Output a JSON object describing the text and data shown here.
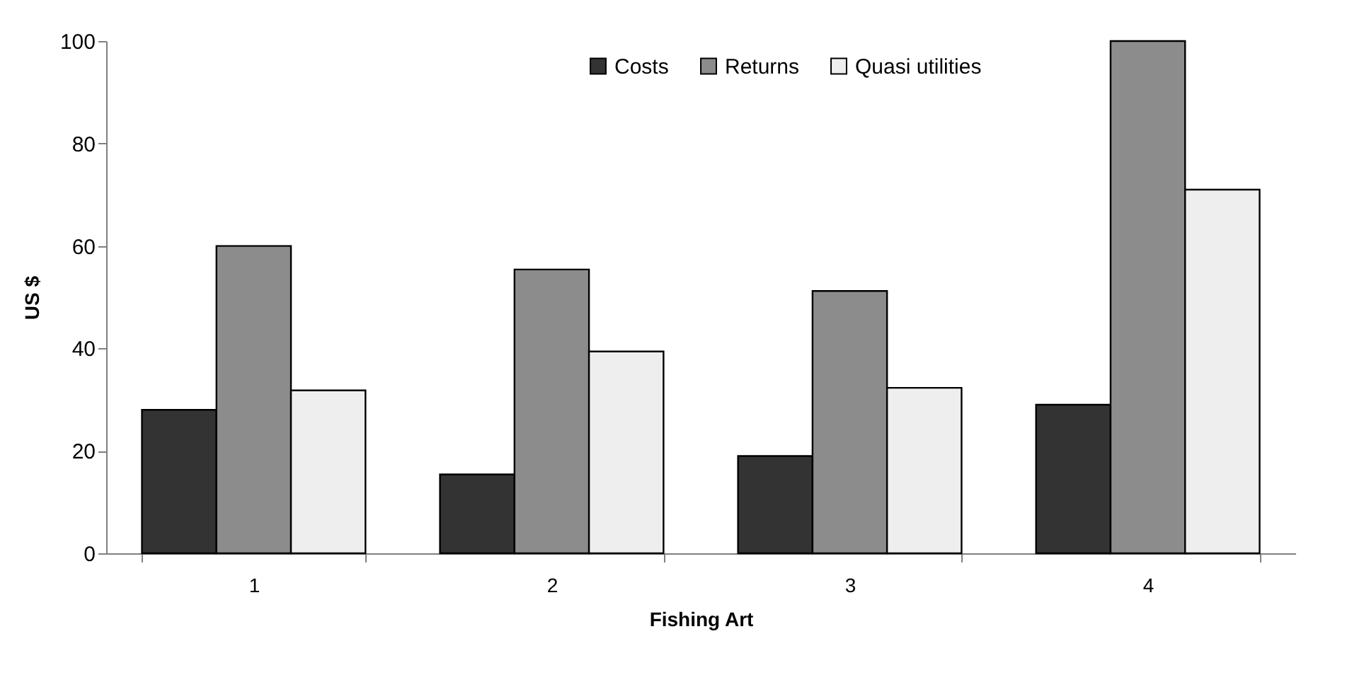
{
  "chart_data": {
    "type": "bar",
    "xlabel": "Fishing Art",
    "ylabel": "US $",
    "categories": [
      "1",
      "2",
      "3",
      "4"
    ],
    "series": [
      {
        "name": "Costs",
        "color": "#333333",
        "values": [
          28,
          15.4,
          19,
          29
        ]
      },
      {
        "name": "Returns",
        "color": "#8c8c8c",
        "values": [
          60,
          55.4,
          51.2,
          100
        ]
      },
      {
        "name": "Quasi utilities",
        "color": "#eeeeee",
        "values": [
          31.8,
          39.4,
          32.3,
          71
        ]
      }
    ],
    "ylim": [
      0,
      100
    ],
    "yticks": [
      0,
      20,
      40,
      60,
      80,
      100
    ],
    "grid": false,
    "legend": "top"
  }
}
